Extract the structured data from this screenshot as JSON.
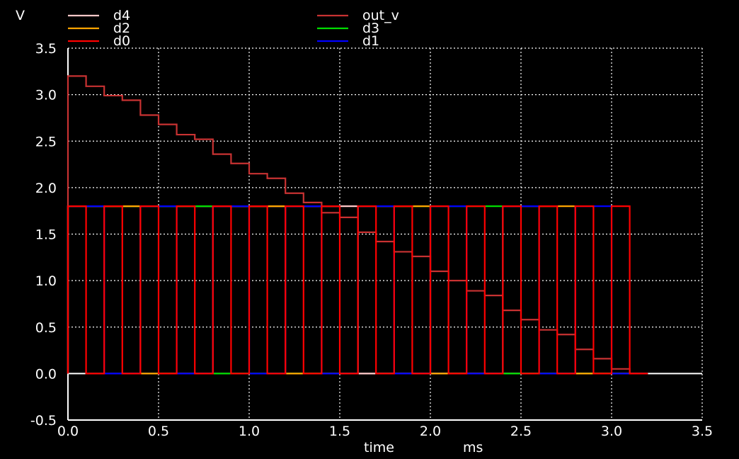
{
  "chart_data": {
    "type": "line",
    "title": "",
    "ylabel": "V",
    "xlabel": "time",
    "xunit": "ms",
    "xlim": [
      0.0,
      3.5
    ],
    "ylim": [
      -0.5,
      3.5
    ],
    "x_ticks": [
      "0.0",
      "0.5",
      "1.0",
      "1.5",
      "2.0",
      "2.5",
      "3.0",
      "3.5"
    ],
    "y_ticks": [
      "-0.5",
      "0.0",
      "0.5",
      "1.0",
      "1.5",
      "2.0",
      "2.5",
      "3.0",
      "3.5"
    ],
    "grid": true,
    "legend_position": "top",
    "zero_line": true,
    "digital": {
      "step_ms": 0.1,
      "high_v": 1.8,
      "low_v": 0.0,
      "start_ms": 0.0,
      "end_ms": 3.1,
      "tail_end_ms": 3.2
    },
    "series": [
      {
        "name": "d4",
        "color": "#ffc8c8",
        "kind": "digital",
        "period_steps": 32,
        "phase": 16
      },
      {
        "name": "d2",
        "color": "#ffa500",
        "kind": "digital",
        "period_steps": 8,
        "phase": 4
      },
      {
        "name": "d0",
        "color": "#ff0000",
        "kind": "digital",
        "period_steps": 2,
        "phase": 1
      },
      {
        "name": "out_v",
        "color": "#c83232",
        "kind": "step",
        "x": [
          0.0,
          0.1,
          0.2,
          0.3,
          0.4,
          0.5,
          0.6,
          0.7,
          0.8,
          0.9,
          1.0,
          1.1,
          1.2,
          1.3,
          1.4,
          1.5,
          1.6,
          1.7,
          1.8,
          1.9,
          2.0,
          2.1,
          2.2,
          2.3,
          2.4,
          2.5,
          2.6,
          2.7,
          2.8,
          2.9,
          3.0,
          3.1
        ],
        "y": [
          3.2,
          3.09,
          2.99,
          2.94,
          2.78,
          2.68,
          2.57,
          2.52,
          2.36,
          2.26,
          2.15,
          2.1,
          1.94,
          1.84,
          1.73,
          1.68,
          1.52,
          1.42,
          1.31,
          1.26,
          1.1,
          1.0,
          0.89,
          0.84,
          0.68,
          0.58,
          0.47,
          0.42,
          0.26,
          0.16,
          0.05,
          0.0
        ]
      },
      {
        "name": "d3",
        "color": "#00dd00",
        "kind": "digital",
        "period_steps": 16,
        "phase": 8
      },
      {
        "name": "d1",
        "color": "#0000ff",
        "kind": "digital",
        "period_steps": 4,
        "phase": 2
      }
    ]
  }
}
